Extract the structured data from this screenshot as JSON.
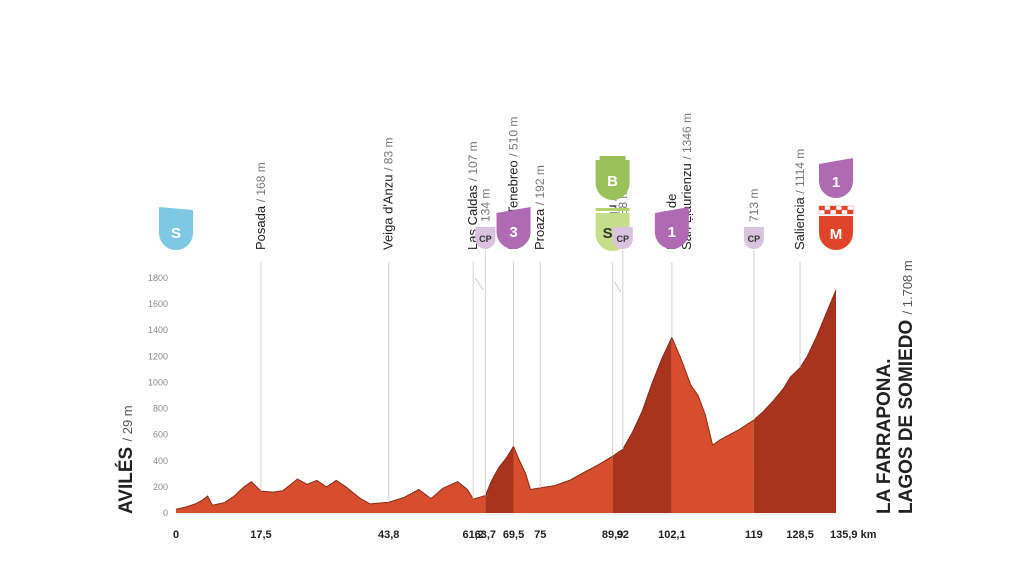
{
  "chart_data": {
    "type": "area",
    "title": "",
    "xlabel": "",
    "ylabel": "",
    "x_unit": "km",
    "xlim": [
      0,
      135.9
    ],
    "ylim": [
      0,
      1800
    ],
    "y_ticks": [
      "0",
      "200",
      "400",
      "600",
      "800",
      "1000",
      "1200",
      "1400",
      "1600",
      "1800"
    ],
    "x_ticks": [
      {
        "km": 0,
        "label": "0"
      },
      {
        "km": 17.5,
        "label": "17,5"
      },
      {
        "km": 43.8,
        "label": "43,8"
      },
      {
        "km": 61.2,
        "label": "61,2"
      },
      {
        "km": 63.7,
        "label": "63,7"
      },
      {
        "km": 69.5,
        "label": "69,5"
      },
      {
        "km": 75,
        "label": "75"
      },
      {
        "km": 89.9,
        "label": "89,9"
      },
      {
        "km": 92,
        "label": "92"
      },
      {
        "km": 102.1,
        "label": "102,1"
      },
      {
        "km": 119,
        "label": "119"
      },
      {
        "km": 128.5,
        "label": "128,5"
      },
      {
        "km": 135.9,
        "label": "135,9 km"
      }
    ],
    "profile": [
      {
        "km": 0,
        "alt": 29
      },
      {
        "km": 2,
        "alt": 45
      },
      {
        "km": 4,
        "alt": 70
      },
      {
        "km": 5.5,
        "alt": 100
      },
      {
        "km": 6.5,
        "alt": 130
      },
      {
        "km": 7.5,
        "alt": 60
      },
      {
        "km": 10,
        "alt": 80
      },
      {
        "km": 12,
        "alt": 130
      },
      {
        "km": 14,
        "alt": 200
      },
      {
        "km": 15.5,
        "alt": 240
      },
      {
        "km": 17.5,
        "alt": 168
      },
      {
        "km": 20,
        "alt": 160
      },
      {
        "km": 22,
        "alt": 170
      },
      {
        "km": 25,
        "alt": 260
      },
      {
        "km": 27,
        "alt": 220
      },
      {
        "km": 29,
        "alt": 250
      },
      {
        "km": 31,
        "alt": 200
      },
      {
        "km": 33,
        "alt": 250
      },
      {
        "km": 35,
        "alt": 200
      },
      {
        "km": 38,
        "alt": 110
      },
      {
        "km": 40,
        "alt": 70
      },
      {
        "km": 43.8,
        "alt": 83
      },
      {
        "km": 47,
        "alt": 120
      },
      {
        "km": 50,
        "alt": 180
      },
      {
        "km": 52.5,
        "alt": 110
      },
      {
        "km": 55,
        "alt": 190
      },
      {
        "km": 58,
        "alt": 240
      },
      {
        "km": 60,
        "alt": 180
      },
      {
        "km": 61.2,
        "alt": 107
      },
      {
        "km": 62.5,
        "alt": 120
      },
      {
        "km": 63.7,
        "alt": 134
      },
      {
        "km": 65,
        "alt": 250
      },
      {
        "km": 66.5,
        "alt": 350
      },
      {
        "km": 68,
        "alt": 420
      },
      {
        "km": 69.5,
        "alt": 510
      },
      {
        "km": 70.5,
        "alt": 420
      },
      {
        "km": 72,
        "alt": 300
      },
      {
        "km": 73,
        "alt": 180
      },
      {
        "km": 75,
        "alt": 192
      },
      {
        "km": 78,
        "alt": 210
      },
      {
        "km": 81,
        "alt": 250
      },
      {
        "km": 84,
        "alt": 310
      },
      {
        "km": 87,
        "alt": 370
      },
      {
        "km": 89.9,
        "alt": 435
      },
      {
        "km": 92,
        "alt": 488
      },
      {
        "km": 94,
        "alt": 620
      },
      {
        "km": 96,
        "alt": 780
      },
      {
        "km": 98,
        "alt": 990
      },
      {
        "km": 100,
        "alt": 1180
      },
      {
        "km": 102.1,
        "alt": 1346
      },
      {
        "km": 104,
        "alt": 1180
      },
      {
        "km": 106,
        "alt": 980
      },
      {
        "km": 107.5,
        "alt": 900
      },
      {
        "km": 109,
        "alt": 750
      },
      {
        "km": 110.5,
        "alt": 520
      },
      {
        "km": 112,
        "alt": 560
      },
      {
        "km": 114,
        "alt": 600
      },
      {
        "km": 116,
        "alt": 640
      },
      {
        "km": 119,
        "alt": 713
      },
      {
        "km": 121,
        "alt": 780
      },
      {
        "km": 123,
        "alt": 860
      },
      {
        "km": 125,
        "alt": 950
      },
      {
        "km": 126.5,
        "alt": 1040
      },
      {
        "km": 128.5,
        "alt": 1114
      },
      {
        "km": 130,
        "alt": 1200
      },
      {
        "km": 132,
        "alt": 1360
      },
      {
        "km": 134,
        "alt": 1540
      },
      {
        "km": 135.9,
        "alt": 1708
      }
    ],
    "shading": [
      {
        "from": 0,
        "to": 63.7,
        "color": "#d64e2e"
      },
      {
        "from": 63.7,
        "to": 69.5,
        "color": "#a8341d"
      },
      {
        "from": 69.5,
        "to": 89.9,
        "color": "#d64e2e"
      },
      {
        "from": 89.9,
        "to": 102.1,
        "color": "#a8341d"
      },
      {
        "from": 102.1,
        "to": 119,
        "color": "#d64e2e"
      },
      {
        "from": 119,
        "to": 135.9,
        "color": "#a8341d"
      }
    ],
    "start": {
      "name": "AVILÉS",
      "alt": "/ 29 m"
    },
    "finish": {
      "line1": "LA FARRAPONA.",
      "line2": "LAGOS DE SOMIEDO",
      "alt": "/ 1.708 m"
    },
    "waypoints": [
      {
        "km": 17.5,
        "name": "Posada",
        "alt": "/ 168 m"
      },
      {
        "km": 43.8,
        "name": "Veiga d'Anzu",
        "alt": "/ 83 m"
      },
      {
        "km": 61.2,
        "name": "Las Caldas",
        "alt": "/ 107 m"
      },
      {
        "km": 69.5,
        "name": "L'Alto Tenebreo",
        "alt": "/ 510 m"
      },
      {
        "km": 75,
        "name": "Proaza",
        "alt": "/ 192 m"
      },
      {
        "km": 89.9,
        "name": "Entragu",
        "alt": "/ 435 m"
      },
      {
        "km": 102.1,
        "name": "Puertu de",
        "name2": "San Ḷḷaurienzu",
        "alt": "/ 1346 m"
      },
      {
        "km": 128.5,
        "name": "Saliencia",
        "alt": "/ 1114 m"
      }
    ],
    "small_alts": [
      {
        "km": 63.7,
        "alt": "134 m"
      },
      {
        "km": 92,
        "alt": "488 m"
      },
      {
        "km": 119,
        "alt": "713 m"
      }
    ],
    "badges": [
      {
        "km": 0,
        "label": "S",
        "color": "#7ec8e3",
        "kind": "flag"
      },
      {
        "km": 63.7,
        "label": "CP",
        "color": "#d9c3de",
        "kind": "small"
      },
      {
        "km": 69.5,
        "label": "3",
        "color": "#b06ab3",
        "kind": "cat"
      },
      {
        "km": 89.9,
        "label": "B",
        "color": "#9bc25a",
        "kind": "bonus"
      },
      {
        "km": 89.9,
        "label": "SP",
        "color": "#c6de8a",
        "kind": "sprint"
      },
      {
        "km": 92,
        "label": "CP",
        "color": "#d9c3de",
        "kind": "small"
      },
      {
        "km": 102.1,
        "label": "1",
        "color": "#b06ab3",
        "kind": "cat"
      },
      {
        "km": 119,
        "label": "CP",
        "color": "#d9c3de",
        "kind": "small"
      },
      {
        "km": 135.9,
        "label": "1",
        "color": "#b06ab3",
        "kind": "cat-top"
      },
      {
        "km": 135.9,
        "label": "M",
        "color": "#e0452b",
        "kind": "finish"
      }
    ]
  }
}
